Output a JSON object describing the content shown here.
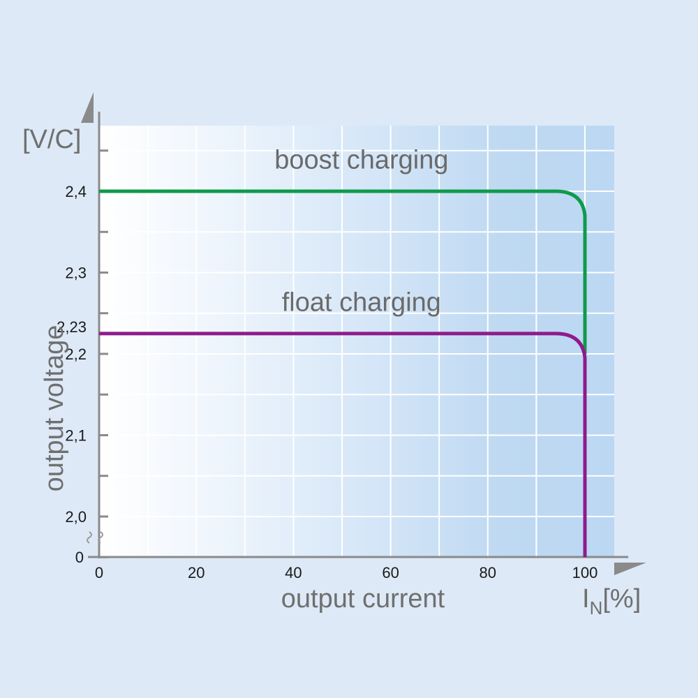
{
  "chart_data": {
    "type": "line",
    "xlabel": "output current",
    "ylabel": "output voltage",
    "y_unit_label": "[V/C]",
    "x_unit_label": {
      "symbol": "I",
      "subscript": "N",
      "bracket": "[%]"
    },
    "xlim": [
      0,
      100
    ],
    "ylim": [
      1.95,
      2.45
    ],
    "x_ticks": [
      0,
      20,
      40,
      60,
      80,
      100
    ],
    "x_tick_labels": [
      "0",
      "20",
      "40",
      "60",
      "80",
      "100"
    ],
    "y_ticks": [
      2.0,
      2.1,
      2.2,
      2.3,
      2.4
    ],
    "y_tick_labels": [
      "2,0",
      "2,1",
      "2,2",
      "2,3",
      "2,4"
    ],
    "y_zero_label": "0",
    "y_extra_tick": {
      "value": 2.23,
      "label": "2,23"
    },
    "axis_break": true,
    "grid": true,
    "series": [
      {
        "name": "boost charging",
        "color": "#0f9a4c",
        "points": [
          [
            0,
            2.4
          ],
          [
            94,
            2.4
          ],
          [
            99.5,
            2.39
          ],
          [
            100,
            2.37
          ],
          [
            100,
            2.2
          ]
        ]
      },
      {
        "name": "float charging",
        "color": "#8e1b8c",
        "points": [
          [
            0,
            2.225
          ],
          [
            94,
            2.225
          ],
          [
            99.5,
            2.215
          ],
          [
            100,
            2.195
          ],
          [
            100,
            1.95
          ]
        ]
      }
    ],
    "annotations": [
      {
        "text": "boost charging",
        "x": 54,
        "y": 2.428
      },
      {
        "text": "float charging",
        "x": 54,
        "y": 2.253
      }
    ]
  }
}
